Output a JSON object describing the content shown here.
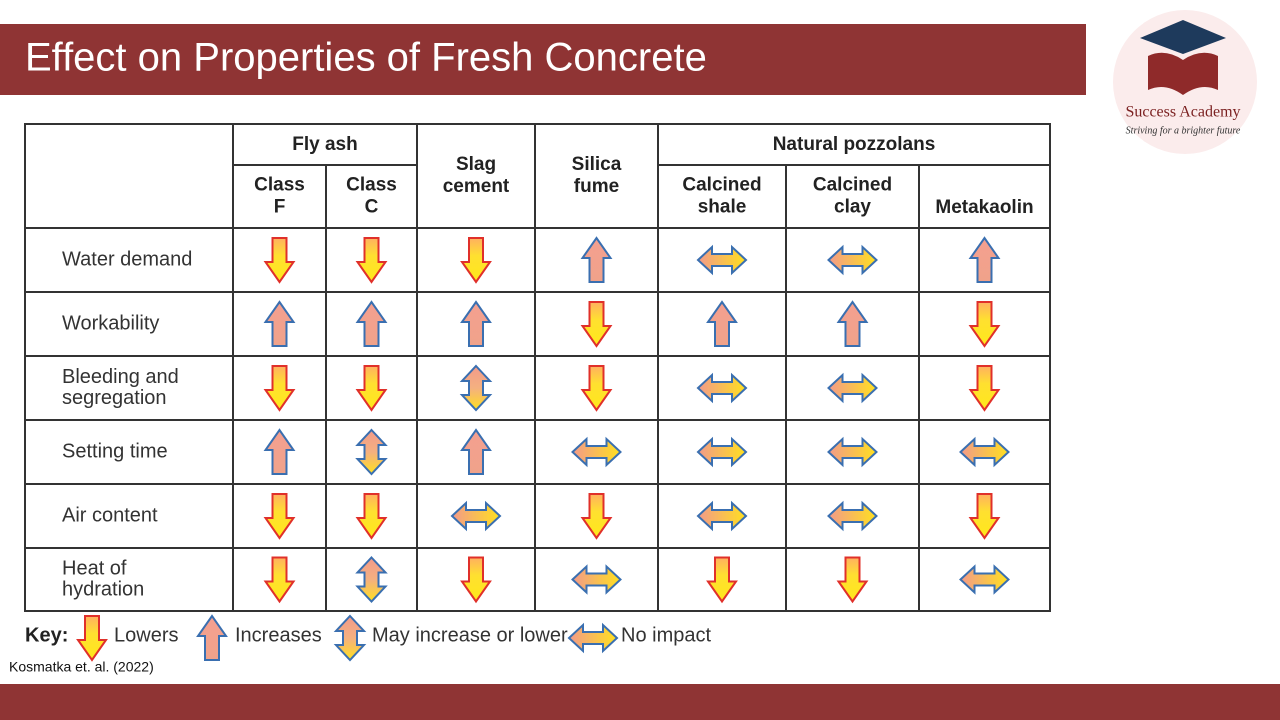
{
  "header": {
    "title": "Effect on Properties of Fresh Concrete"
  },
  "logo": {
    "name": "Success Academy",
    "tagline": "Striving for a brighter future"
  },
  "table": {
    "groups": [
      "Fly ash",
      "Natural pozzolans"
    ],
    "columns": [
      [
        "Class",
        "F"
      ],
      [
        "Class",
        "C"
      ],
      [
        "Slag",
        "cement"
      ],
      [
        "Silica",
        "fume"
      ],
      [
        "Calcined",
        "shale"
      ],
      [
        "Calcined",
        "clay"
      ],
      [
        "Metakaolin"
      ]
    ],
    "rows": [
      [
        "Water demand"
      ],
      [
        "Workability"
      ],
      [
        "Bleeding and",
        "segregation"
      ],
      [
        "Setting time"
      ],
      [
        "Air content"
      ],
      [
        "Heat of",
        "hydration"
      ]
    ]
  },
  "key": {
    "title": "Key:",
    "items": [
      "Lowers",
      "Increases",
      "May increase or lower",
      "No impact"
    ]
  },
  "citation": "Kosmatka et. al. (2022)"
}
